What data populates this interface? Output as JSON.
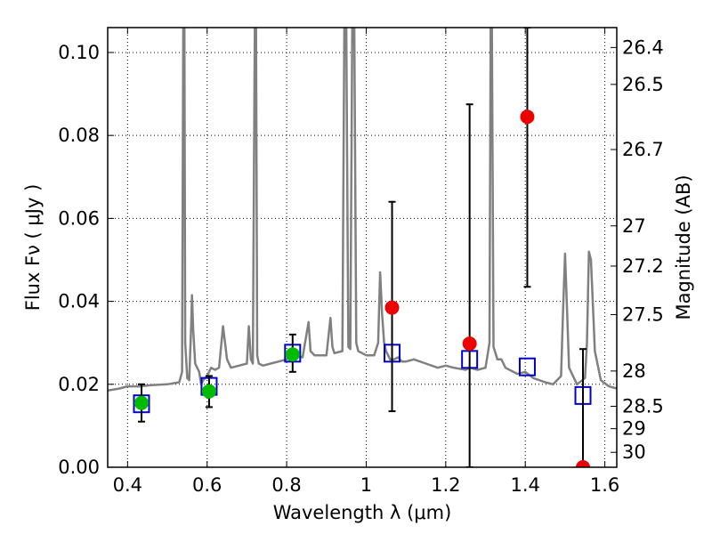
{
  "chart_data": {
    "type": "scatter",
    "xlabel": "Wavelength  λ (μm)",
    "ylabel": "Flux  Fν  ( μJy )",
    "ylabel_right": "Magnitude (AB)",
    "xlim": [
      0.35,
      1.63
    ],
    "ylim": [
      0.0,
      0.106
    ],
    "grid": true,
    "x_ticks": [
      {
        "value": 0.4,
        "label": "0.4"
      },
      {
        "value": 0.6,
        "label": "0.6"
      },
      {
        "value": 0.8,
        "label": "0.8"
      },
      {
        "value": 1.0,
        "label": "1"
      },
      {
        "value": 1.2,
        "label": "1.2"
      },
      {
        "value": 1.4,
        "label": "1.4"
      },
      {
        "value": 1.6,
        "label": "1.6"
      }
    ],
    "y_ticks": [
      {
        "value": 0.0,
        "label": "0.00"
      },
      {
        "value": 0.02,
        "label": "0.02"
      },
      {
        "value": 0.04,
        "label": "0.04"
      },
      {
        "value": 0.06,
        "label": "0.06"
      },
      {
        "value": 0.08,
        "label": "0.08"
      },
      {
        "value": 0.1,
        "label": "0.10"
      }
    ],
    "right_ticks": [
      {
        "flux": 0.1012,
        "label": "26.4"
      },
      {
        "flux": 0.0923,
        "label": "26.5"
      },
      {
        "flux": 0.0766,
        "label": "26.7"
      },
      {
        "flux": 0.0582,
        "label": "27"
      },
      {
        "flux": 0.0485,
        "label": "27.2"
      },
      {
        "flux": 0.0368,
        "label": "27.5"
      },
      {
        "flux": 0.0232,
        "label": "28"
      },
      {
        "flux": 0.0147,
        "label": "28.5"
      },
      {
        "flux": 0.0093,
        "label": "29"
      },
      {
        "flux": 0.0036,
        "label": "30"
      }
    ],
    "series": [
      {
        "style": "spectrum",
        "color": "#808080",
        "x": [
          0.35,
          0.38,
          0.4,
          0.43,
          0.46,
          0.5,
          0.53,
          0.537,
          0.54,
          0.543,
          0.545,
          0.55,
          0.555,
          0.56,
          0.562,
          0.565,
          0.57,
          0.58,
          0.585,
          0.59,
          0.6,
          0.61,
          0.62,
          0.63,
          0.64,
          0.65,
          0.66,
          0.68,
          0.7,
          0.705,
          0.71,
          0.715,
          0.72,
          0.723,
          0.726,
          0.73,
          0.74,
          0.76,
          0.78,
          0.8,
          0.82,
          0.84,
          0.855,
          0.86,
          0.87,
          0.9,
          0.91,
          0.915,
          0.92,
          0.94,
          0.945,
          0.95,
          0.955,
          0.96,
          0.965,
          0.97,
          0.975,
          0.98,
          1.0,
          1.02,
          1.03,
          1.035,
          1.04,
          1.045,
          1.05,
          1.06,
          1.07,
          1.08,
          1.09,
          1.1,
          1.12,
          1.15,
          1.18,
          1.2,
          1.22,
          1.25,
          1.26,
          1.28,
          1.3,
          1.31,
          1.313,
          1.316,
          1.32,
          1.33,
          1.34,
          1.35,
          1.38,
          1.4,
          1.42,
          1.45,
          1.47,
          1.49,
          1.495,
          1.5,
          1.505,
          1.51,
          1.53,
          1.55,
          1.555,
          1.56,
          1.565,
          1.575,
          1.59,
          1.61,
          1.63
        ],
        "y": [
          0.0185,
          0.019,
          0.0195,
          0.0195,
          0.0198,
          0.02,
          0.0205,
          0.023,
          0.106,
          0.106,
          0.03,
          0.0215,
          0.021,
          0.034,
          0.0415,
          0.033,
          0.025,
          0.023,
          0.02,
          0.021,
          0.022,
          0.024,
          0.0235,
          0.024,
          0.034,
          0.026,
          0.024,
          0.0245,
          0.025,
          0.034,
          0.026,
          0.025,
          0.106,
          0.106,
          0.027,
          0.025,
          0.0245,
          0.025,
          0.0255,
          0.026,
          0.027,
          0.0265,
          0.035,
          0.028,
          0.027,
          0.027,
          0.036,
          0.029,
          0.0275,
          0.028,
          0.106,
          0.106,
          0.029,
          0.0285,
          0.106,
          0.106,
          0.03,
          0.028,
          0.027,
          0.027,
          0.03,
          0.047,
          0.037,
          0.03,
          0.028,
          0.026,
          0.026,
          0.0265,
          0.0255,
          0.0255,
          0.026,
          0.025,
          0.024,
          0.0245,
          0.024,
          0.0235,
          0.024,
          0.0235,
          0.024,
          0.03,
          0.106,
          0.106,
          0.029,
          0.026,
          0.026,
          0.024,
          0.0225,
          0.023,
          0.0215,
          0.0205,
          0.02,
          0.022,
          0.038,
          0.0515,
          0.038,
          0.024,
          0.02,
          0.0215,
          0.03,
          0.052,
          0.05,
          0.028,
          0.021,
          0.0195,
          0.019
        ]
      },
      {
        "style": "open-square",
        "color": "#0000cc",
        "x": [
          0.435,
          0.605,
          0.815,
          1.065,
          1.26,
          1.405,
          1.545
        ],
        "y": [
          0.0153,
          0.0195,
          0.0275,
          0.0275,
          0.026,
          0.0242,
          0.0173
        ]
      },
      {
        "style": "filled-circle",
        "color": "#00bb00",
        "x": [
          0.435,
          0.605,
          0.815
        ],
        "y": [
          0.0155,
          0.0183,
          0.0272
        ]
      },
      {
        "style": "filled-circle",
        "color": "#ee0000",
        "x": [
          1.065,
          1.26,
          1.405,
          1.545
        ],
        "y": [
          0.0385,
          0.0298,
          0.0845,
          0.0
        ]
      }
    ],
    "error_bars": [
      {
        "x": 0.435,
        "y_low": 0.011,
        "y_high": 0.02
      },
      {
        "x": 0.605,
        "y_low": 0.0145,
        "y_high": 0.022
      },
      {
        "x": 0.815,
        "y_low": 0.023,
        "y_high": 0.032
      },
      {
        "x": 1.065,
        "y_low": 0.0135,
        "y_high": 0.064
      },
      {
        "x": 1.26,
        "y_low": 0.0,
        "y_high": 0.0875
      },
      {
        "x": 1.405,
        "y_low": 0.0435,
        "y_high": 0.106
      },
      {
        "x": 1.545,
        "y_low": 0.0,
        "y_high": 0.0285
      }
    ]
  }
}
